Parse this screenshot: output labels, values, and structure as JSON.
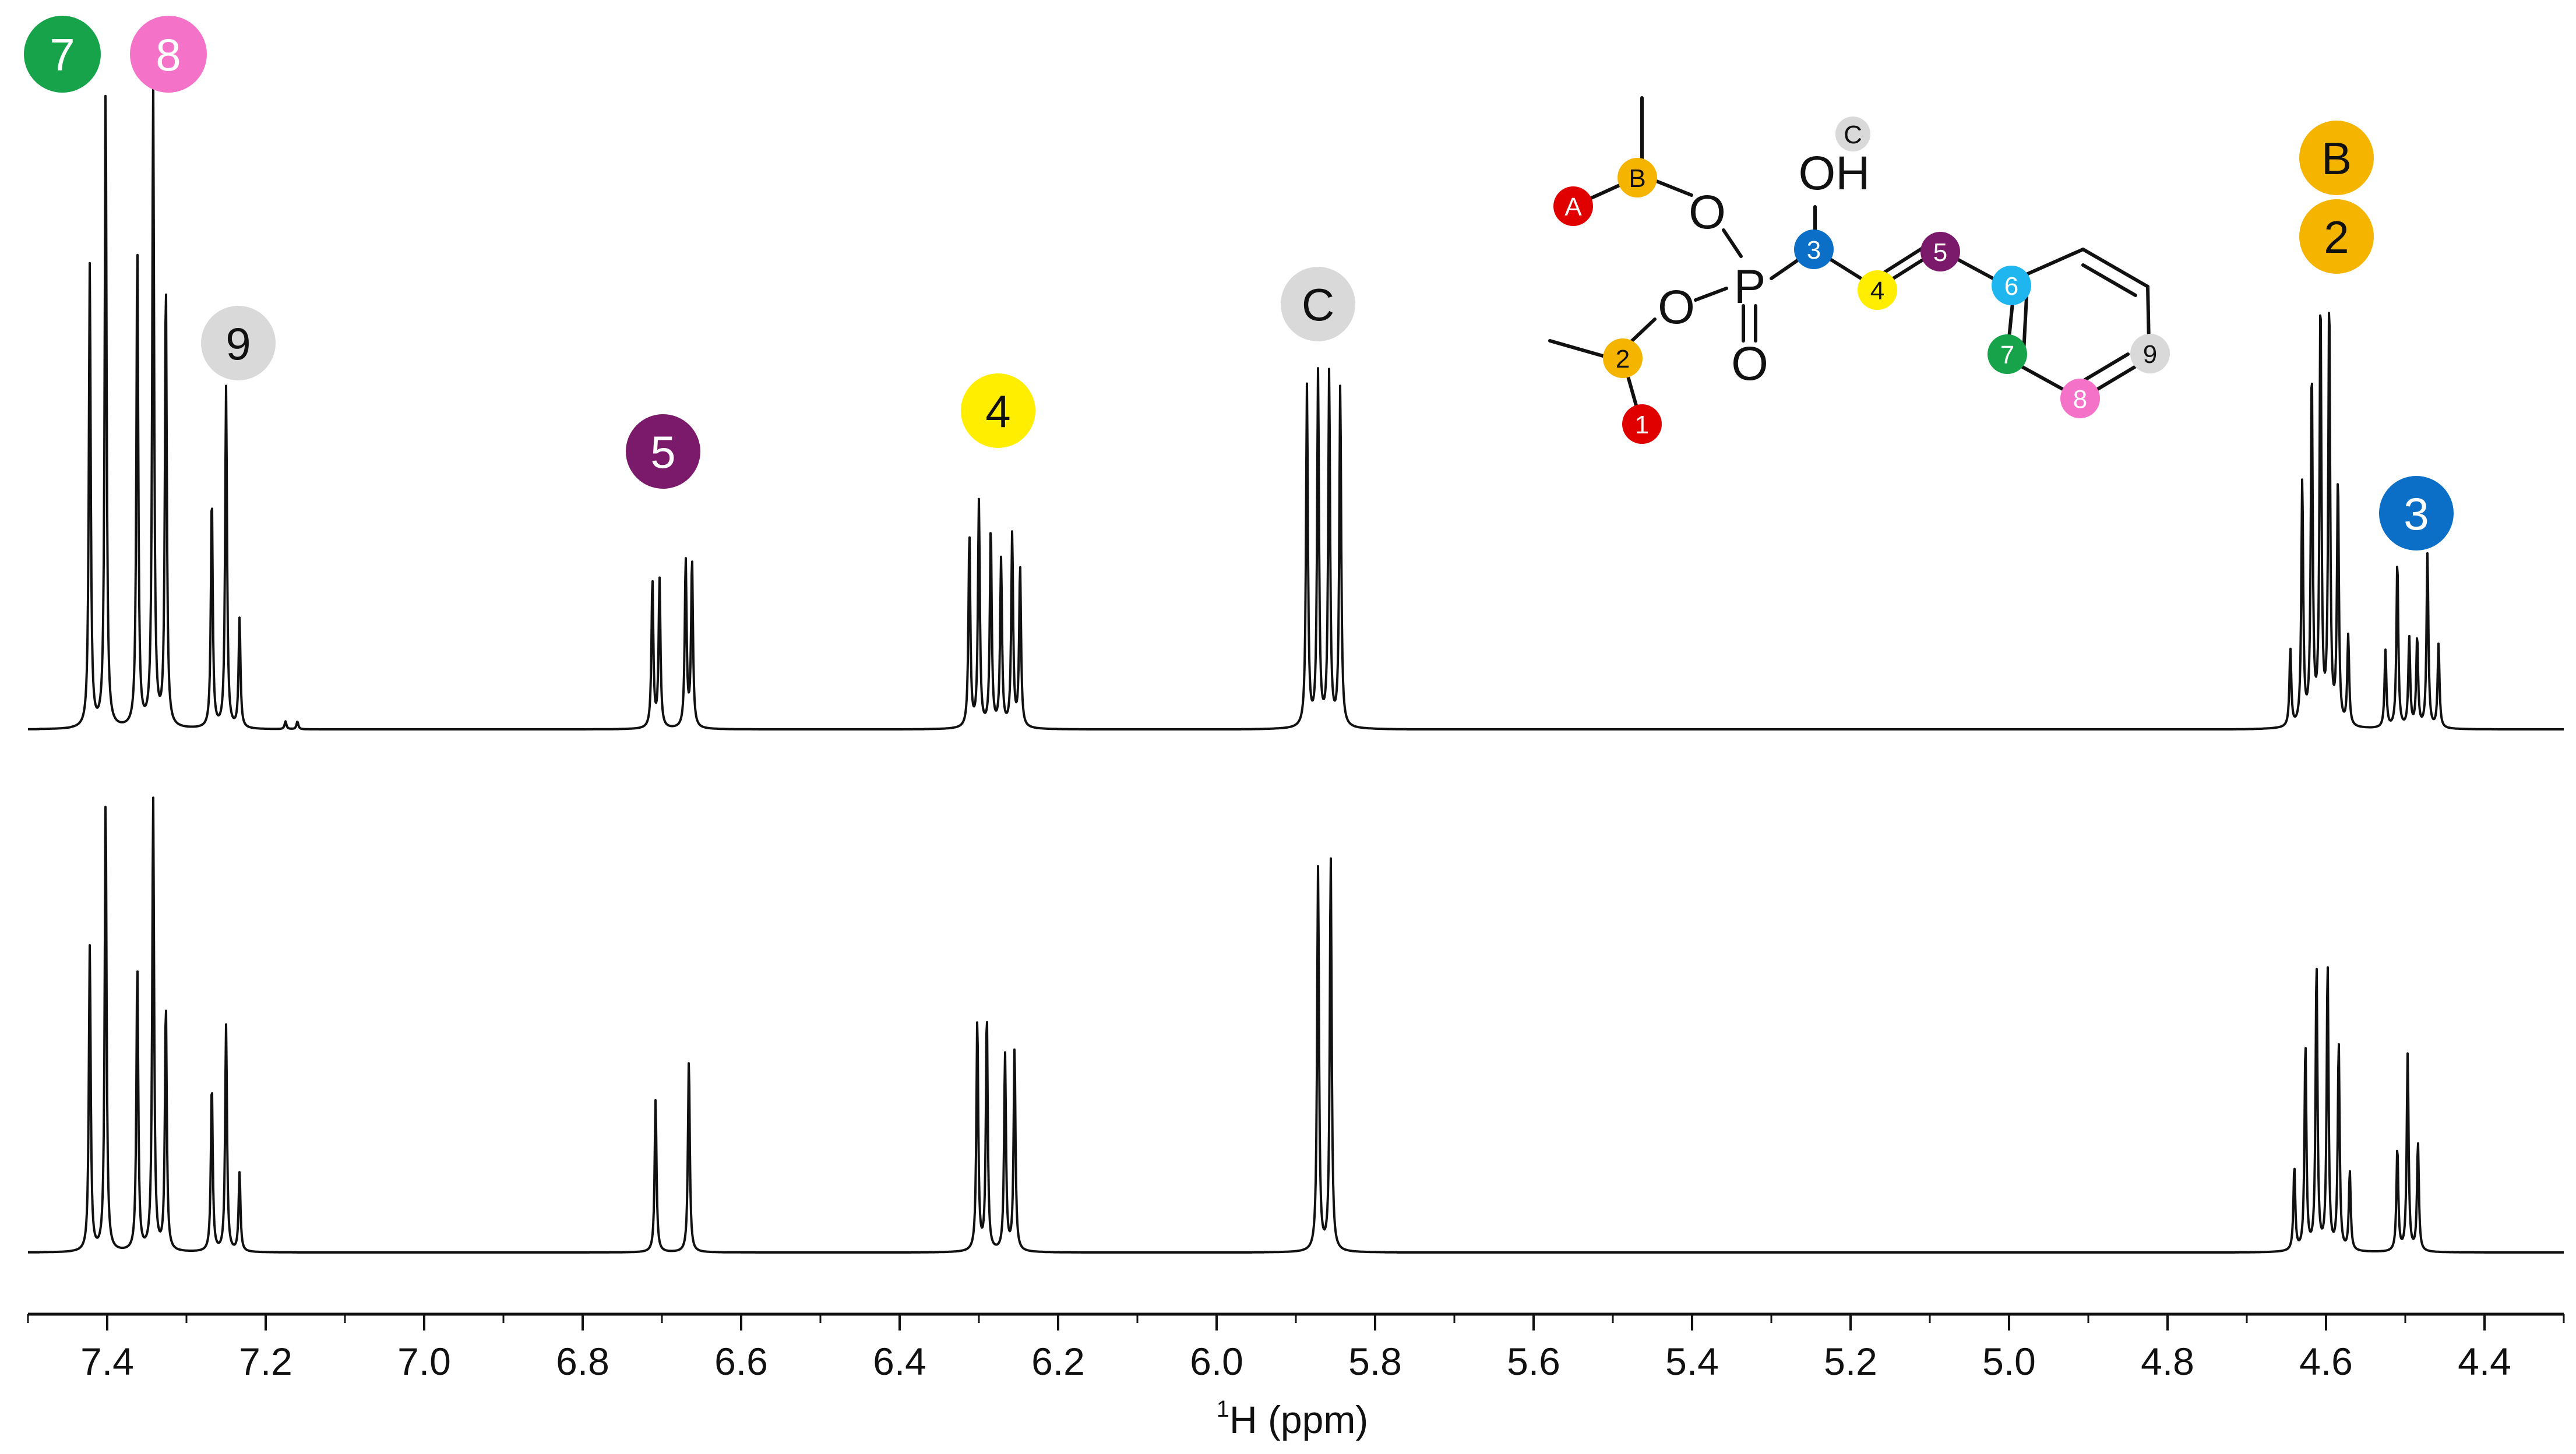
{
  "chart_data": {
    "type": "line",
    "xlabel_sup": "1",
    "xlabel": "H (ppm)",
    "xlim": [
      7.5,
      4.3
    ],
    "x_reversed": true,
    "x_ticks": [
      "7.4",
      "7.2",
      "7.0",
      "6.8",
      "6.6",
      "6.4",
      "6.2",
      "6.0",
      "5.8",
      "5.6",
      "5.4",
      "5.2",
      "5.0",
      "4.8",
      "4.6",
      "4.4"
    ],
    "grid": false,
    "series": [
      {
        "trace": "top",
        "peaks": [
          {
            "ppm": 7.422,
            "h": 0.72
          },
          {
            "ppm": 7.402,
            "h": 1.0
          },
          {
            "ppm": 7.362,
            "h": 0.75
          },
          {
            "ppm": 7.342,
            "h": 1.0
          },
          {
            "ppm": 7.326,
            "h": 0.69
          },
          {
            "ppm": 7.268,
            "h": 0.36
          },
          {
            "ppm": 7.25,
            "h": 0.53
          },
          {
            "ppm": 7.233,
            "h": 0.17
          },
          {
            "ppm": 7.175,
            "h": 0.012
          },
          {
            "ppm": 7.16,
            "h": 0.012
          },
          {
            "ppm": 6.712,
            "h": 0.23
          },
          {
            "ppm": 6.703,
            "h": 0.23
          },
          {
            "ppm": 6.67,
            "h": 0.26
          },
          {
            "ppm": 6.662,
            "h": 0.26
          },
          {
            "ppm": 6.312,
            "h": 0.3
          },
          {
            "ppm": 6.3,
            "h": 0.35
          },
          {
            "ppm": 6.285,
            "h": 0.31
          },
          {
            "ppm": 6.272,
            "h": 0.26
          },
          {
            "ppm": 6.258,
            "h": 0.3
          },
          {
            "ppm": 6.248,
            "h": 0.25
          },
          {
            "ppm": 5.886,
            "h": 0.53
          },
          {
            "ppm": 5.872,
            "h": 0.55
          },
          {
            "ppm": 5.858,
            "h": 0.55
          },
          {
            "ppm": 5.844,
            "h": 0.53
          },
          {
            "ppm": 4.645,
            "h": 0.12
          },
          {
            "ppm": 4.63,
            "h": 0.38
          },
          {
            "ppm": 4.618,
            "h": 0.55
          },
          {
            "ppm": 4.607,
            "h": 0.66
          },
          {
            "ppm": 4.596,
            "h": 0.66
          },
          {
            "ppm": 4.585,
            "h": 0.38
          },
          {
            "ppm": 4.572,
            "h": 0.14
          },
          {
            "ppm": 4.525,
            "h": 0.12
          },
          {
            "ppm": 4.51,
            "h": 0.26
          },
          {
            "ppm": 4.495,
            "h": 0.14
          },
          {
            "ppm": 4.485,
            "h": 0.14
          },
          {
            "ppm": 4.472,
            "h": 0.27
          },
          {
            "ppm": 4.458,
            "h": 0.13
          }
        ]
      },
      {
        "trace": "bottom",
        "peaks": [
          {
            "ppm": 7.422,
            "h": 0.62
          },
          {
            "ppm": 7.402,
            "h": 0.92
          },
          {
            "ppm": 7.362,
            "h": 0.58
          },
          {
            "ppm": 7.342,
            "h": 0.92
          },
          {
            "ppm": 7.326,
            "h": 0.5
          },
          {
            "ppm": 7.268,
            "h": 0.34
          },
          {
            "ppm": 7.25,
            "h": 0.46
          },
          {
            "ppm": 7.233,
            "h": 0.16
          },
          {
            "ppm": 6.708,
            "h": 0.31
          },
          {
            "ppm": 6.666,
            "h": 0.39
          },
          {
            "ppm": 6.302,
            "h": 0.47
          },
          {
            "ppm": 6.29,
            "h": 0.48
          },
          {
            "ppm": 6.267,
            "h": 0.4
          },
          {
            "ppm": 6.255,
            "h": 0.41
          },
          {
            "ppm": 5.872,
            "h": 0.78
          },
          {
            "ppm": 5.856,
            "h": 0.8
          },
          {
            "ppm": 4.64,
            "h": 0.17
          },
          {
            "ppm": 4.626,
            "h": 0.42
          },
          {
            "ppm": 4.612,
            "h": 0.58
          },
          {
            "ppm": 4.598,
            "h": 0.58
          },
          {
            "ppm": 4.584,
            "h": 0.42
          },
          {
            "ppm": 4.57,
            "h": 0.16
          },
          {
            "ppm": 4.51,
            "h": 0.21
          },
          {
            "ppm": 4.497,
            "h": 0.4
          },
          {
            "ppm": 4.484,
            "h": 0.22
          }
        ]
      }
    ],
    "annotations": [
      {
        "label": "7",
        "color": "#16a34a",
        "text_color": "#ffffff"
      },
      {
        "label": "8",
        "color": "#f472c8",
        "text_color": "#ffffff"
      },
      {
        "label": "9",
        "color": "#d9d9d9",
        "text_color": "#111111"
      },
      {
        "label": "5",
        "color": "#7b1a6a",
        "text_color": "#ffffff"
      },
      {
        "label": "4",
        "color": "#ffee00",
        "text_color": "#111111"
      },
      {
        "label": "C",
        "color": "#d9d9d9",
        "text_color": "#111111"
      },
      {
        "label": "B",
        "color": "#f5b400",
        "text_color": "#111111"
      },
      {
        "label": "2",
        "color": "#f5b400",
        "text_color": "#111111"
      },
      {
        "label": "3",
        "color": "#0b6fc7",
        "text_color": "#ffffff"
      }
    ]
  },
  "molecule": {
    "atoms": {
      "oh": "OH",
      "o1": "O",
      "o2": "O",
      "p": "P",
      "o3": "O"
    },
    "markers": [
      {
        "label": "A",
        "color": "#e00000",
        "text_color": "#ffffff"
      },
      {
        "label": "B",
        "color": "#f5b400",
        "text_color": "#111111"
      },
      {
        "label": "C",
        "color": "#d9d9d9",
        "text_color": "#111111"
      },
      {
        "label": "3",
        "color": "#0b6fc7",
        "text_color": "#ffffff"
      },
      {
        "label": "5",
        "color": "#7b1a6a",
        "text_color": "#ffffff"
      },
      {
        "label": "4",
        "color": "#ffee00",
        "text_color": "#111111"
      },
      {
        "label": "6",
        "color": "#1fb6f0",
        "text_color": "#ffffff"
      },
      {
        "label": "2",
        "color": "#f5b400",
        "text_color": "#111111"
      },
      {
        "label": "7",
        "color": "#16a34a",
        "text_color": "#ffffff"
      },
      {
        "label": "9",
        "color": "#d9d9d9",
        "text_color": "#111111"
      },
      {
        "label": "8",
        "color": "#f472c8",
        "text_color": "#ffffff"
      },
      {
        "label": "1",
        "color": "#e00000",
        "text_color": "#ffffff"
      }
    ]
  }
}
